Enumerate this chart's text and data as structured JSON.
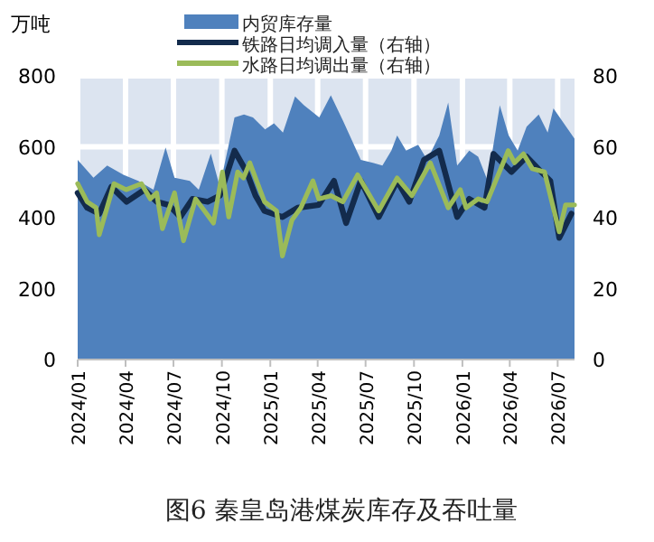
{
  "chart_data": {
    "type": "area",
    "title": "图6 秦皇岛港煤炭库存及吞吐量",
    "ylabel": "万吨",
    "xlim": [
      "2024-01-01",
      "2026-08-02"
    ],
    "xticks": [
      {
        "value": "2024-01-01",
        "label": "2024/01"
      },
      {
        "value": "2024-04-01",
        "label": "2024/04"
      },
      {
        "value": "2024-07-01",
        "label": "2024/07"
      },
      {
        "value": "2024-10-01",
        "label": "2024/10"
      },
      {
        "value": "2025-01-01",
        "label": "2025/01"
      },
      {
        "value": "2025-04-01",
        "label": "2025/04"
      },
      {
        "value": "2025-07-01",
        "label": "2025/07"
      },
      {
        "value": "2025-10-01",
        "label": "2025/10"
      },
      {
        "value": "2026-01-01",
        "label": "2026/01"
      },
      {
        "value": "2026-04-01",
        "label": "2026/04"
      },
      {
        "value": "2026-07-01",
        "label": "2026/07"
      }
    ],
    "ylim": [
      0,
      800
    ],
    "yticks": [
      0,
      200,
      400,
      600,
      800
    ],
    "y2lim": [
      0,
      80
    ],
    "y2ticks": [
      0,
      20,
      40,
      60,
      80
    ],
    "grid": true,
    "legend": "top",
    "series": [
      {
        "name": "内贸库存量",
        "color": "#4f81bd",
        "x": [
          "2024-01-01",
          "2024-01-31",
          "2024-02-26",
          "2024-03-28",
          "2024-04-25",
          "2024-05-24",
          "2024-06-16",
          "2024-07-03",
          "2024-08-01",
          "2024-08-18",
          "2024-09-10",
          "2024-09-27",
          "2024-10-25",
          "2024-11-12",
          "2024-11-29",
          "2024-12-22",
          "2025-01-08",
          "2025-01-25",
          "2025-02-17",
          "2025-03-06",
          "2025-04-04",
          "2025-04-26",
          "2025-05-19",
          "2025-06-22",
          "2025-07-15",
          "2025-08-02",
          "2025-08-19",
          "2025-08-30",
          "2025-09-16",
          "2025-10-09",
          "2025-10-26",
          "2025-11-18",
          "2025-12-05",
          "2025-12-22",
          "2026-01-14",
          "2026-01-31",
          "2026-02-18",
          "2026-03-13",
          "2026-03-30",
          "2026-04-16",
          "2026-05-03",
          "2026-05-26",
          "2026-06-12",
          "2026-06-23",
          "2026-08-02"
        ],
        "values": [
          563,
          513,
          547,
          521,
          504,
          479,
          598,
          513,
          504,
          479,
          581,
          487,
          683,
          691,
          683,
          649,
          666,
          640,
          742,
          717,
          683,
          745,
          674,
          563,
          555,
          547,
          589,
          632,
          589,
          606,
          563,
          632,
          725,
          547,
          589,
          572,
          504,
          717,
          632,
          589,
          657,
          691,
          640,
          708,
          623
        ]
      },
      {
        "name": "铁路日均调入量（右轴）",
        "type": "line",
        "axis": "y2",
        "color": "#132b4c",
        "x": [
          "2024-01-01",
          "2024-01-19",
          "2024-02-11",
          "2024-03-05",
          "2024-04-03",
          "2024-05-07",
          "2024-05-30",
          "2024-06-22",
          "2024-07-14",
          "2024-08-06",
          "2024-09-04",
          "2024-09-27",
          "2024-10-25",
          "2024-11-17",
          "2024-12-04",
          "2024-12-21",
          "2025-01-24",
          "2025-02-22",
          "2025-04-03",
          "2025-05-02",
          "2025-05-25",
          "2025-06-22",
          "2025-07-26",
          "2025-08-30",
          "2025-09-22",
          "2025-10-20",
          "2025-11-18",
          "2025-12-22",
          "2026-01-14",
          "2026-02-12",
          "2026-03-01",
          "2026-04-04",
          "2026-05-03",
          "2026-05-31",
          "2026-06-17",
          "2026-07-04",
          "2026-07-27"
        ],
        "values": [
          47.0,
          42.8,
          41.1,
          48.7,
          44.5,
          47.9,
          44.5,
          43.6,
          40.2,
          45.3,
          44.5,
          46.2,
          58.9,
          52.9,
          46.2,
          41.9,
          40.2,
          42.8,
          43.6,
          50.4,
          38.5,
          50.4,
          40.2,
          50.4,
          44.5,
          56.3,
          58.9,
          40.2,
          45.3,
          42.8,
          58.0,
          52.9,
          57.2,
          52.9,
          50.4,
          34.3,
          41.1
        ]
      },
      {
        "name": "水路日均调出量（右轴）",
        "type": "line",
        "axis": "y2",
        "color": "#9bbb59",
        "x": [
          "2024-01-01",
          "2024-01-19",
          "2024-02-05",
          "2024-02-11",
          "2024-03-10",
          "2024-04-02",
          "2024-05-01",
          "2024-05-18",
          "2024-05-30",
          "2024-06-10",
          "2024-07-03",
          "2024-07-20",
          "2024-08-12",
          "2024-08-29",
          "2024-09-15",
          "2024-10-02",
          "2024-10-14",
          "2024-10-31",
          "2024-11-11",
          "2024-11-23",
          "2024-12-21",
          "2025-01-13",
          "2025-01-24",
          "2025-02-11",
          "2025-02-28",
          "2025-03-23",
          "2025-04-03",
          "2025-04-26",
          "2025-05-19",
          "2025-06-16",
          "2025-07-26",
          "2025-08-30",
          "2025-09-27",
          "2025-11-01",
          "2025-12-05",
          "2025-12-28",
          "2026-01-08",
          "2026-01-31",
          "2026-02-17",
          "2026-03-29",
          "2026-04-10",
          "2026-04-27",
          "2026-05-14",
          "2026-06-06",
          "2026-07-04",
          "2026-07-16",
          "2026-08-02"
        ],
        "values": [
          49.6,
          44.5,
          42.8,
          35.2,
          49.6,
          47.9,
          49.6,
          45.3,
          47.0,
          36.9,
          47.0,
          33.5,
          45.3,
          41.9,
          38.5,
          52.9,
          40.2,
          52.9,
          51.2,
          55.5,
          44.5,
          41.9,
          29.2,
          39.3,
          42.8,
          50.4,
          45.3,
          46.2,
          44.5,
          52.1,
          41.9,
          51.2,
          46.2,
          55.5,
          42.8,
          47.9,
          42.8,
          45.3,
          44.5,
          58.9,
          55.5,
          58.0,
          53.8,
          52.9,
          36.0,
          43.6,
          43.6
        ]
      }
    ]
  }
}
